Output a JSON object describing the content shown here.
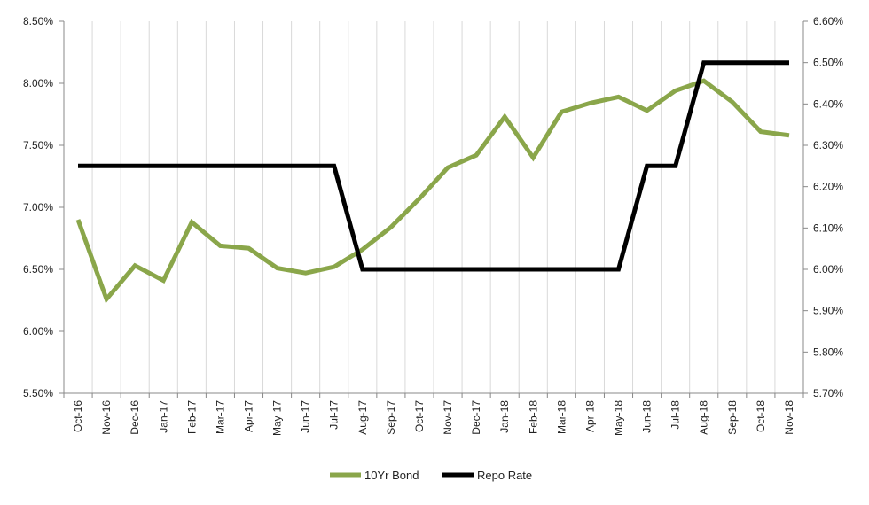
{
  "chart_data": {
    "type": "line",
    "categories": [
      "Oct-16",
      "Nov-16",
      "Dec-16",
      "Jan-17",
      "Feb-17",
      "Mar-17",
      "Apr-17",
      "May-17",
      "Jun-17",
      "Jul-17",
      "Aug-17",
      "Sep-17",
      "Oct-17",
      "Nov-17",
      "Dec-17",
      "Jan-18",
      "Feb-18",
      "Mar-18",
      "Apr-18",
      "May-18",
      "Jun-18",
      "Jul-18",
      "Aug-18",
      "Sep-18",
      "Oct-18",
      "Nov-18"
    ],
    "series": [
      {
        "name": "10Yr Bond",
        "axis": "left",
        "color": "#8aa64a",
        "values": [
          6.9,
          6.26,
          6.53,
          6.41,
          6.88,
          6.69,
          6.67,
          6.51,
          6.47,
          6.52,
          6.66,
          6.84,
          7.07,
          7.32,
          7.42,
          7.73,
          7.4,
          7.77,
          7.84,
          7.89,
          7.78,
          7.94,
          8.02,
          7.85,
          7.61,
          7.58
        ]
      },
      {
        "name": "Repo Rate",
        "axis": "right",
        "color": "#000000",
        "values": [
          6.25,
          6.25,
          6.25,
          6.25,
          6.25,
          6.25,
          6.25,
          6.25,
          6.25,
          6.25,
          6.0,
          6.0,
          6.0,
          6.0,
          6.0,
          6.0,
          6.0,
          6.0,
          6.0,
          6.0,
          6.25,
          6.25,
          6.5,
          6.5,
          6.5,
          6.5
        ]
      }
    ],
    "left_axis": {
      "ylim": [
        5.5,
        8.5
      ],
      "ticks": [
        5.5,
        6.0,
        6.5,
        7.0,
        7.5,
        8.0,
        8.5
      ],
      "tick_labels": [
        "5.50%",
        "6.00%",
        "6.50%",
        "7.00%",
        "7.50%",
        "8.00%",
        "8.50%"
      ]
    },
    "right_axis": {
      "ylim": [
        5.7,
        6.6
      ],
      "ticks": [
        5.7,
        5.8,
        5.9,
        6.0,
        6.1,
        6.2,
        6.3,
        6.4,
        6.5,
        6.6
      ],
      "tick_labels": [
        "5.70%",
        "5.80%",
        "5.90%",
        "6.00%",
        "6.10%",
        "6.20%",
        "6.30%",
        "6.40%",
        "6.50%",
        "6.60%"
      ]
    },
    "grid": true,
    "legend_position": "bottom"
  }
}
